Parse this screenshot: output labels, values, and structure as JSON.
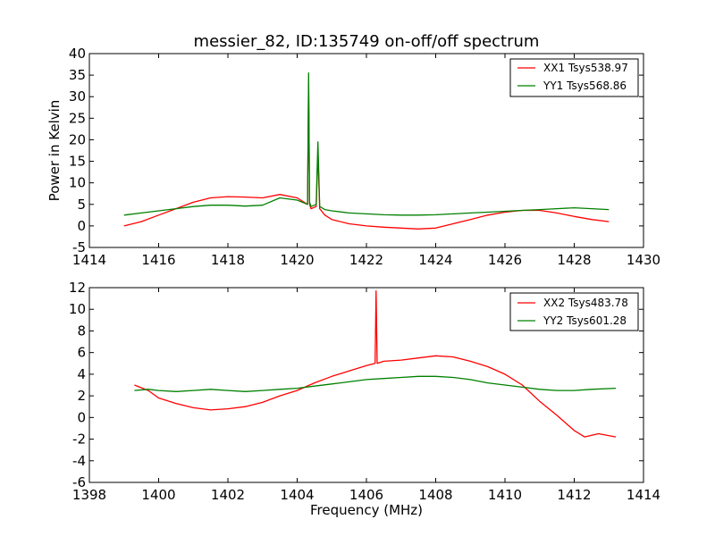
{
  "chart_data": [
    {
      "type": "line",
      "title": "messier_82, ID:135749 on-off/off spectrum",
      "xlabel": "",
      "ylabel": "Power in Kelvin",
      "xlim": [
        1414,
        1430
      ],
      "ylim": [
        -5,
        40
      ],
      "xticks": [
        1414,
        1416,
        1418,
        1420,
        1422,
        1424,
        1426,
        1428,
        1430
      ],
      "yticks": [
        -5,
        0,
        5,
        10,
        15,
        20,
        25,
        30,
        35,
        40
      ],
      "legend": "top-right",
      "grid": false,
      "series": [
        {
          "name": "XX1 Tsys538.97",
          "color": "#ff0000",
          "x": [
            1415.0,
            1415.5,
            1416.0,
            1416.5,
            1417.0,
            1417.5,
            1418.0,
            1418.5,
            1419.0,
            1419.5,
            1420.0,
            1420.3,
            1420.33,
            1420.36,
            1420.4,
            1420.55,
            1420.6,
            1420.65,
            1420.8,
            1421.0,
            1421.5,
            1422.0,
            1422.5,
            1423.0,
            1423.5,
            1424.0,
            1424.5,
            1425.0,
            1425.5,
            1426.0,
            1426.5,
            1427.0,
            1427.5,
            1428.0,
            1428.5,
            1429.0
          ],
          "y": [
            0.0,
            1.0,
            2.5,
            4.0,
            5.5,
            6.5,
            6.8,
            6.7,
            6.5,
            7.3,
            6.5,
            5.0,
            33.0,
            5.0,
            4.0,
            4.5,
            17.0,
            4.0,
            2.5,
            1.5,
            0.5,
            0.0,
            -0.3,
            -0.5,
            -0.7,
            -0.5,
            0.5,
            1.5,
            2.5,
            3.2,
            3.6,
            3.6,
            3.0,
            2.2,
            1.5,
            1.0
          ]
        },
        {
          "name": "YY1 Tsys568.86",
          "color": "#008000",
          "x": [
            1415.0,
            1415.5,
            1416.0,
            1416.5,
            1417.0,
            1417.5,
            1418.0,
            1418.5,
            1419.0,
            1419.5,
            1420.0,
            1420.3,
            1420.33,
            1420.36,
            1420.4,
            1420.55,
            1420.6,
            1420.65,
            1420.8,
            1421.0,
            1421.5,
            1422.0,
            1422.5,
            1423.0,
            1423.5,
            1424.0,
            1424.5,
            1425.0,
            1425.5,
            1426.0,
            1426.5,
            1427.0,
            1427.5,
            1428.0,
            1428.5,
            1429.0
          ],
          "y": [
            2.5,
            3.0,
            3.5,
            4.0,
            4.5,
            4.8,
            4.8,
            4.6,
            4.8,
            6.5,
            6.0,
            5.0,
            35.5,
            5.5,
            4.5,
            5.0,
            19.5,
            4.5,
            3.8,
            3.5,
            3.0,
            2.8,
            2.6,
            2.5,
            2.5,
            2.6,
            2.8,
            3.0,
            3.2,
            3.4,
            3.6,
            3.8,
            4.0,
            4.2,
            4.0,
            3.8
          ]
        }
      ]
    },
    {
      "type": "line",
      "title": "",
      "xlabel": "Frequency (MHz)",
      "ylabel": "",
      "xlim": [
        1398,
        1414
      ],
      "ylim": [
        -6,
        12
      ],
      "xticks": [
        1398,
        1400,
        1402,
        1404,
        1406,
        1408,
        1410,
        1412,
        1414
      ],
      "yticks": [
        -6,
        -4,
        -2,
        0,
        2,
        4,
        6,
        8,
        10,
        12
      ],
      "legend": "top-right",
      "grid": false,
      "series": [
        {
          "name": "XX2 Tsys483.78",
          "color": "#ff0000",
          "x": [
            1399.3,
            1399.7,
            1400.0,
            1400.5,
            1401.0,
            1401.5,
            1402.0,
            1402.5,
            1403.0,
            1403.5,
            1404.0,
            1404.5,
            1405.0,
            1405.5,
            1406.0,
            1406.25,
            1406.28,
            1406.31,
            1406.5,
            1407.0,
            1407.5,
            1408.0,
            1408.5,
            1409.0,
            1409.5,
            1410.0,
            1410.5,
            1411.0,
            1411.5,
            1412.0,
            1412.3,
            1412.7,
            1413.2
          ],
          "y": [
            3.0,
            2.5,
            1.8,
            1.3,
            0.9,
            0.7,
            0.8,
            1.0,
            1.4,
            2.0,
            2.5,
            3.2,
            3.8,
            4.3,
            4.8,
            5.0,
            11.7,
            5.0,
            5.2,
            5.3,
            5.5,
            5.7,
            5.6,
            5.2,
            4.7,
            4.0,
            3.0,
            1.5,
            0.2,
            -1.2,
            -1.8,
            -1.5,
            -1.8
          ]
        },
        {
          "name": "YY2 Tsys601.28",
          "color": "#008000",
          "x": [
            1399.3,
            1399.7,
            1400.0,
            1400.5,
            1401.0,
            1401.5,
            1402.0,
            1402.5,
            1403.0,
            1403.5,
            1404.0,
            1404.5,
            1405.0,
            1405.5,
            1406.0,
            1406.5,
            1407.0,
            1407.5,
            1408.0,
            1408.5,
            1409.0,
            1409.5,
            1410.0,
            1410.5,
            1411.0,
            1411.5,
            1412.0,
            1412.5,
            1413.2
          ],
          "y": [
            2.5,
            2.6,
            2.5,
            2.4,
            2.5,
            2.6,
            2.5,
            2.4,
            2.5,
            2.6,
            2.7,
            2.9,
            3.1,
            3.3,
            3.5,
            3.6,
            3.7,
            3.8,
            3.8,
            3.7,
            3.5,
            3.2,
            3.0,
            2.8,
            2.6,
            2.5,
            2.5,
            2.6,
            2.7
          ]
        }
      ]
    }
  ]
}
